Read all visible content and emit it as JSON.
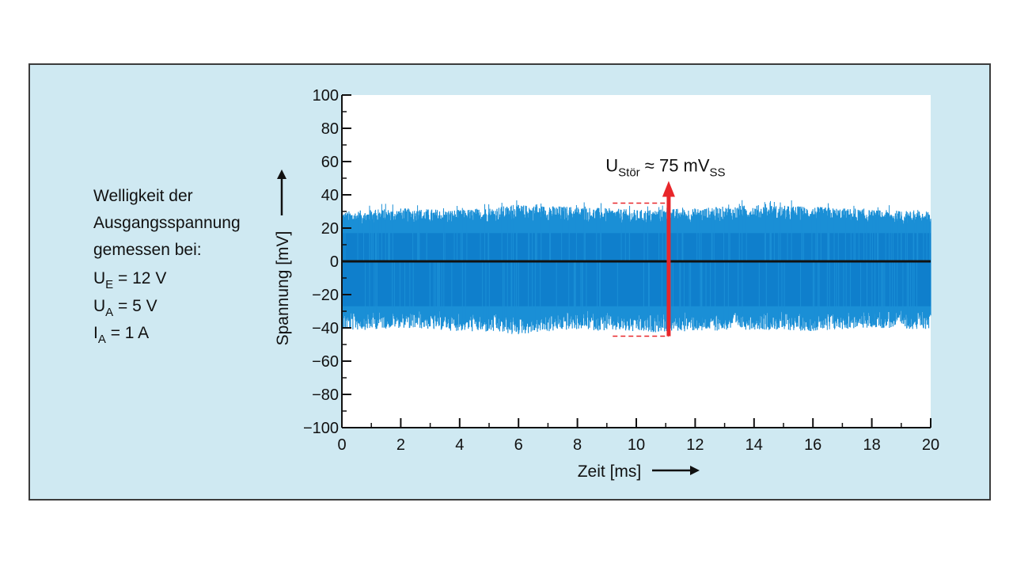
{
  "description": {
    "lines": [
      "Welligkeit der",
      "Ausgangsspannung",
      "gemessen bei:"
    ],
    "params": [
      {
        "main": "U",
        "sub": "E",
        "rest": " = 12 V"
      },
      {
        "main": "U",
        "sub": "A",
        "rest": " = 5 V"
      },
      {
        "main": "I",
        "sub": "A",
        "rest": " = 1 A"
      }
    ]
  },
  "annotation": {
    "main": "U",
    "sub": "Stör",
    "middle": " ≈ 75 mV",
    "sub2": "SS",
    "x": 11.1,
    "top": 35,
    "bottom": -45,
    "marker_x_start": 9.2
  },
  "colors": {
    "signal": "#1a8fd6",
    "signal_dense": "#0f7fcc",
    "annotation": "#e8262a",
    "axis": "#111111",
    "panel": "#cfe9f2",
    "plot_bg": "#ffffff"
  },
  "chart_data": {
    "type": "line",
    "xlabel": "Zeit [ms]",
    "ylabel": "Spannung [mV]",
    "xlim": [
      0,
      20
    ],
    "ylim": [
      -100,
      100
    ],
    "x_ticks": [
      "0",
      "2",
      "4",
      "6",
      "8",
      "10",
      "12",
      "14",
      "16",
      "18",
      "20"
    ],
    "y_ticks": [
      "100",
      "80",
      "60",
      "40",
      "20",
      "0",
      "−20",
      "−40",
      "−60",
      "−80",
      "−100"
    ],
    "series": [
      {
        "style": "dense noise",
        "envelope": {
          "x": [
            0,
            2,
            4,
            6,
            8,
            10,
            12,
            14,
            16,
            18,
            20
          ],
          "y_max": [
            30,
            32,
            31,
            34,
            33,
            31,
            32,
            34,
            33,
            31,
            30
          ],
          "y_min": [
            -42,
            -40,
            -42,
            -44,
            -41,
            -43,
            -42,
            -41,
            -42,
            -40,
            -41
          ]
        }
      }
    ],
    "grid": false
  }
}
